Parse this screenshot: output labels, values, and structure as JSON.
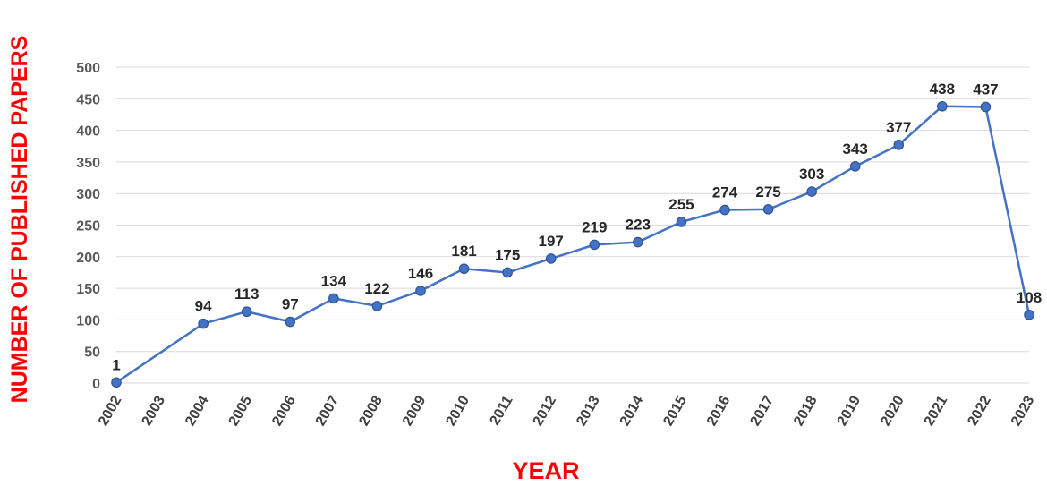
{
  "chart_data": {
    "type": "line",
    "title": "",
    "xlabel": "YEAR",
    "ylabel": "NUMBER OF PUBLISHED PAPERS",
    "categories": [
      "2002",
      "2003",
      "2004",
      "2005",
      "2006",
      "2007",
      "2008",
      "2009",
      "2010",
      "2011",
      "2012",
      "2013",
      "2014",
      "2015",
      "2016",
      "2017",
      "2018",
      "2019",
      "2020",
      "2021",
      "2022",
      "2023"
    ],
    "series": [
      {
        "name": "",
        "points": [
          {
            "x": "2002",
            "y": 1
          },
          {
            "x": "2004",
            "y": 94
          },
          {
            "x": "2005",
            "y": 113
          },
          {
            "x": "2006",
            "y": 97
          },
          {
            "x": "2007",
            "y": 134
          },
          {
            "x": "2008",
            "y": 122
          },
          {
            "x": "2009",
            "y": 146
          },
          {
            "x": "2010",
            "y": 181
          },
          {
            "x": "2011",
            "y": 175
          },
          {
            "x": "2012",
            "y": 197
          },
          {
            "x": "2013",
            "y": 219
          },
          {
            "x": "2014",
            "y": 223
          },
          {
            "x": "2015",
            "y": 255
          },
          {
            "x": "2016",
            "y": 274
          },
          {
            "x": "2017",
            "y": 275
          },
          {
            "x": "2018",
            "y": 303
          },
          {
            "x": "2019",
            "y": 343
          },
          {
            "x": "2020",
            "y": 377
          },
          {
            "x": "2021",
            "y": 438
          },
          {
            "x": "2022",
            "y": 437
          },
          {
            "x": "2023",
            "y": 108
          }
        ]
      }
    ],
    "yticks": [
      "0",
      "50",
      "100",
      "150",
      "200",
      "250",
      "300",
      "350",
      "400",
      "450",
      "500"
    ],
    "ylim": [
      0,
      500
    ],
    "grid": true,
    "legend": "none",
    "colors": {
      "line": "#4472c4",
      "marker_fill": "#4472c4",
      "marker_stroke": "#2f5597",
      "axis_title": "#ff0000",
      "grid": "#d9d9d9"
    }
  }
}
